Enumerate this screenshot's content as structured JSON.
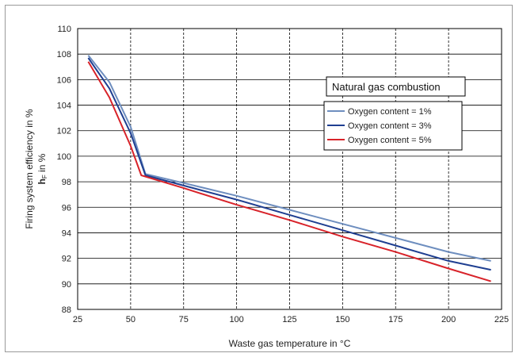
{
  "chart_data": {
    "type": "line",
    "xlabel": "Waste gas temperature  in °C",
    "ylabel_line1": "Firing system efficiency in %",
    "ylabel_line2_bold": "h",
    "ylabel_line2_sub": "F",
    "ylabel_line2_rest": " in %",
    "xlim": [
      25,
      225
    ],
    "ylim": [
      88,
      110
    ],
    "x_ticks": [
      "25",
      "50",
      "75",
      "100",
      "125",
      "150",
      "175",
      "200",
      "225"
    ],
    "y_ticks": [
      "88",
      "90",
      "92",
      "94",
      "96",
      "98",
      "100",
      "102",
      "104",
      "106",
      "108",
      "110"
    ],
    "grid": {
      "vertical": "dashed",
      "horizontal": "solid"
    },
    "legend": {
      "title": "Natural gas combustion",
      "placement": "top-right"
    },
    "series": [
      {
        "name": "Oxygen content = 1%",
        "color": "#6e8ebf",
        "points": [
          [
            30,
            107.9
          ],
          [
            40,
            105.8
          ],
          [
            50,
            102.3
          ],
          [
            57,
            98.6
          ],
          [
            75,
            97.9
          ],
          [
            100,
            96.9
          ],
          [
            125,
            95.8
          ],
          [
            150,
            94.7
          ],
          [
            175,
            93.6
          ],
          [
            200,
            92.5
          ],
          [
            220,
            91.8
          ]
        ]
      },
      {
        "name": "Oxygen content = 3%",
        "color": "#1f3f91",
        "points": [
          [
            30,
            107.7
          ],
          [
            40,
            105.3
          ],
          [
            50,
            101.8
          ],
          [
            57,
            98.5
          ],
          [
            75,
            97.7
          ],
          [
            100,
            96.6
          ],
          [
            125,
            95.4
          ],
          [
            150,
            94.2
          ],
          [
            175,
            93.0
          ],
          [
            200,
            91.8
          ],
          [
            220,
            91.1
          ]
        ]
      },
      {
        "name": "Oxygen content = 5%",
        "color": "#d8232a",
        "points": [
          [
            30,
            107.4
          ],
          [
            40,
            104.6
          ],
          [
            50,
            100.8
          ],
          [
            55,
            98.5
          ],
          [
            75,
            97.5
          ],
          [
            100,
            96.2
          ],
          [
            125,
            95.0
          ],
          [
            150,
            93.7
          ],
          [
            175,
            92.5
          ],
          [
            200,
            91.2
          ],
          [
            220,
            90.2
          ]
        ]
      }
    ]
  }
}
